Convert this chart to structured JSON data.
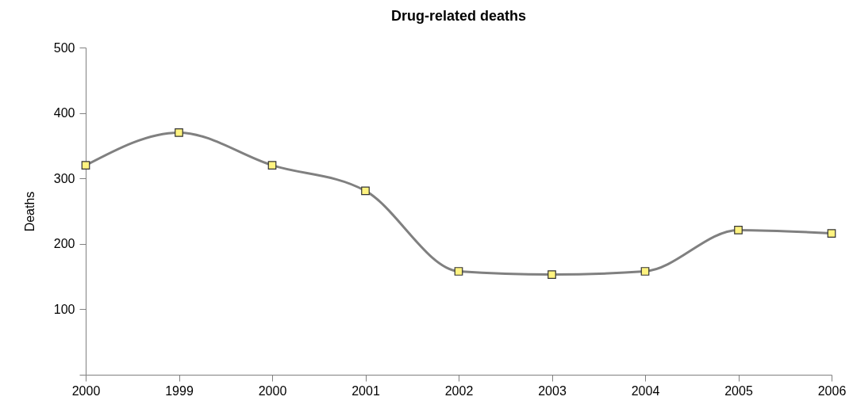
{
  "chart_data": {
    "type": "line",
    "title": "Drug-related deaths",
    "ylabel": "Deaths",
    "categories": [
      "2000",
      "1999",
      "2000",
      "2001",
      "2002",
      "2003",
      "2004",
      "2005",
      "2006"
    ],
    "series": [
      {
        "color": "#808080",
        "values": [
          320,
          370,
          320,
          281,
          158,
          153,
          158,
          221,
          216
        ]
      }
    ],
    "ylim": [
      0,
      500
    ],
    "yticks": [
      {
        "value": 0,
        "label": null
      },
      100,
      200,
      300,
      400,
      500
    ],
    "grid": false,
    "marker": "square",
    "line_style": "solid"
  }
}
